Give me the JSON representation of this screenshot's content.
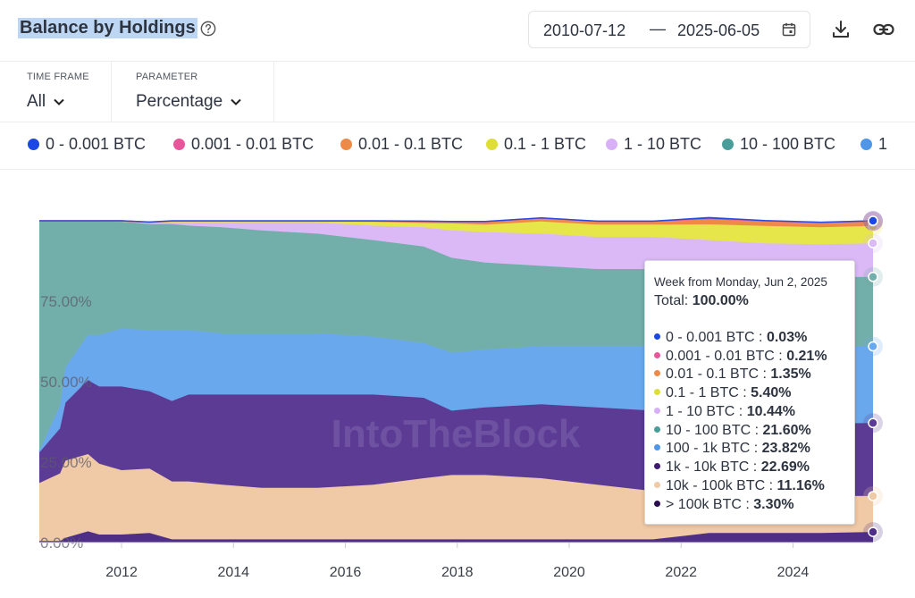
{
  "header": {
    "title": "Balance by Holdings",
    "date_start": "2010-07-12",
    "date_separator": "—",
    "date_end": "2025-06-05"
  },
  "controls": {
    "time_frame": {
      "label": "TIME FRAME",
      "value": "All"
    },
    "parameter": {
      "label": "PARAMETER",
      "value": "Percentage"
    }
  },
  "legend": [
    {
      "label": "0 - 0.001 BTC",
      "color": "#1a47e5"
    },
    {
      "label": "0.001 - 0.01 BTC",
      "color": "#e8559a"
    },
    {
      "label": "0.01 - 0.1 BTC",
      "color": "#ee8a48"
    },
    {
      "label": "0.1 - 1 BTC",
      "color": "#dede35"
    },
    {
      "label": "1 - 10 BTC",
      "color": "#d8b0f8"
    },
    {
      "label": "10 - 100 BTC",
      "color": "#4a9e99"
    },
    {
      "label": "1",
      "color": "#4f96e8"
    }
  ],
  "watermark": "IntoTheBlock",
  "tooltip": {
    "week": "Week from Monday, Jun 2, 2025",
    "total_label": "Total:",
    "total_value": "100.00%",
    "rows": [
      {
        "label": "0 - 0.001 BTC :",
        "value": "0.03%",
        "color": "#1a47e5"
      },
      {
        "label": "0.001 - 0.01 BTC :",
        "value": "0.21%",
        "color": "#e8559a"
      },
      {
        "label": "0.01 - 0.1 BTC :",
        "value": "1.35%",
        "color": "#ee8a48"
      },
      {
        "label": "0.1 - 1 BTC :",
        "value": "5.40%",
        "color": "#dede35"
      },
      {
        "label": "1 - 10 BTC :",
        "value": "10.44%",
        "color": "#d8b0f8"
      },
      {
        "label": "10 - 100 BTC :",
        "value": "21.60%",
        "color": "#4a9e99"
      },
      {
        "label": "100 - 1k BTC :",
        "value": "23.82%",
        "color": "#4f96e8"
      },
      {
        "label": "1k - 10k BTC :",
        "value": "22.69%",
        "color": "#3e1a70"
      },
      {
        "label": "10k - 100k BTC :",
        "value": "11.16%",
        "color": "#f0c9a6"
      },
      {
        "label": "> 100k BTC :",
        "value": "3.30%",
        "color": "#2a0d4f"
      }
    ]
  },
  "chart_data": {
    "type": "area",
    "stacked": true,
    "x_unit": "year",
    "xlim": [
      2010.53,
      2025.43
    ],
    "ylim": [
      0,
      100
    ],
    "y_ticks": [
      "0.00%",
      "25.00%",
      "50.00%",
      "75.00%"
    ],
    "x_ticks": [
      "2012",
      "2014",
      "2016",
      "2018",
      "2020",
      "2022",
      "2024"
    ],
    "x_tick_values": [
      2012,
      2014,
      2016,
      2018,
      2020,
      2022,
      2024
    ],
    "grid": true,
    "x": [
      2010.53,
      2010.9,
      2011.0,
      2011.4,
      2011.6,
      2012.0,
      2012.5,
      2012.9,
      2013.2,
      2013.8,
      2014.5,
      2015.5,
      2016.5,
      2017.4,
      2017.9,
      2018.5,
      2019.5,
      2020.5,
      2021.5,
      2022.5,
      2023.5,
      2024.5,
      2025.43
    ],
    "series": [
      {
        "name": "> 100k BTC",
        "color": "#4e2e86",
        "values": [
          0.5,
          0.5,
          1.5,
          3.5,
          2.5,
          2.5,
          3.0,
          1.0,
          1.0,
          1.0,
          1.0,
          1.0,
          1.0,
          1.0,
          1.0,
          1.0,
          1.0,
          1.0,
          1.0,
          3.0,
          3.0,
          3.0,
          3.3
        ]
      },
      {
        "name": "10k - 100k BTC",
        "color": "#f0c9a6",
        "values": [
          18,
          21,
          24,
          24,
          22,
          20,
          20,
          18,
          18,
          17,
          16,
          16,
          17,
          19,
          20,
          20,
          19,
          17,
          15,
          13,
          12,
          11.5,
          11.16
        ]
      },
      {
        "name": "1k - 10k BTC",
        "color": "#5b3b94",
        "values": [
          9.5,
          14,
          18,
          23,
          24,
          26,
          24,
          25,
          27,
          28,
          29,
          29,
          28,
          25,
          20,
          21,
          23,
          24,
          25,
          24,
          23,
          22.5,
          22.69
        ]
      },
      {
        "name": "100 - 1k BTC",
        "color": "#6aa8ee",
        "values": [
          0.5,
          7,
          11,
          14,
          16,
          18,
          19,
          22,
          20,
          19,
          19,
          19,
          18,
          17,
          18,
          18,
          18,
          19,
          20,
          22,
          23,
          23.5,
          23.82
        ]
      },
      {
        "name": "10 - 100 BTC",
        "color": "#73afaa",
        "values": [
          71.45,
          57.45,
          45.45,
          35.45,
          35.45,
          33.3,
          33.0,
          33.0,
          32.5,
          33.0,
          32.0,
          31.0,
          30.0,
          30.0,
          29.5,
          27.0,
          25.0,
          24.0,
          24.0,
          22.0,
          22.0,
          22.0,
          21.6
        ]
      },
      {
        "name": "1 - 10 BTC",
        "color": "#dab9f6",
        "values": [
          0.01,
          0.01,
          0.01,
          0.01,
          0.01,
          0.1,
          0.4,
          0.5,
          1.0,
          1.5,
          2.5,
          3.5,
          4.5,
          6.0,
          8.5,
          9.5,
          10.0,
          10.0,
          10.0,
          10.0,
          10.0,
          10.2,
          10.44
        ]
      },
      {
        "name": "0.1 - 1 BTC",
        "color": "#e6e64a",
        "values": [
          0.01,
          0.01,
          0.01,
          0.01,
          0.01,
          0.05,
          0.1,
          0.3,
          0.3,
          0.3,
          0.3,
          0.3,
          1.2,
          1.3,
          2.2,
          2.3,
          3.8,
          3.8,
          3.8,
          4.9,
          5.4,
          5.3,
          5.4
        ]
      },
      {
        "name": "0.01 - 0.1 BTC",
        "color": "#ee8a48",
        "values": [
          0.01,
          0.01,
          0.01,
          0.01,
          0.01,
          0.04,
          0.05,
          0.1,
          0.1,
          0.1,
          0.1,
          0.1,
          0.2,
          0.5,
          0.5,
          0.9,
          1.0,
          1.0,
          1.0,
          1.6,
          1.4,
          1.3,
          1.35
        ]
      },
      {
        "name": "0.001 - 0.01 BTC",
        "color": "#e8559a",
        "values": [
          0.01,
          0.01,
          0.01,
          0.01,
          0.01,
          0.01,
          0.03,
          0.05,
          0.05,
          0.05,
          0.05,
          0.05,
          0.05,
          0.05,
          0.05,
          0.05,
          0.05,
          0.05,
          0.05,
          0.2,
          0.2,
          0.2,
          0.21
        ]
      },
      {
        "name": "0 - 0.001 BTC",
        "color": "#1a47e5",
        "values": [
          0.01,
          0.01,
          0.01,
          0.01,
          0.01,
          0.01,
          0.02,
          0.05,
          0.05,
          0.05,
          0.05,
          0.05,
          0.05,
          0.05,
          0.05,
          0.05,
          0.05,
          0.05,
          0.05,
          0.3,
          0.05,
          0.05,
          0.03
        ]
      }
    ]
  }
}
